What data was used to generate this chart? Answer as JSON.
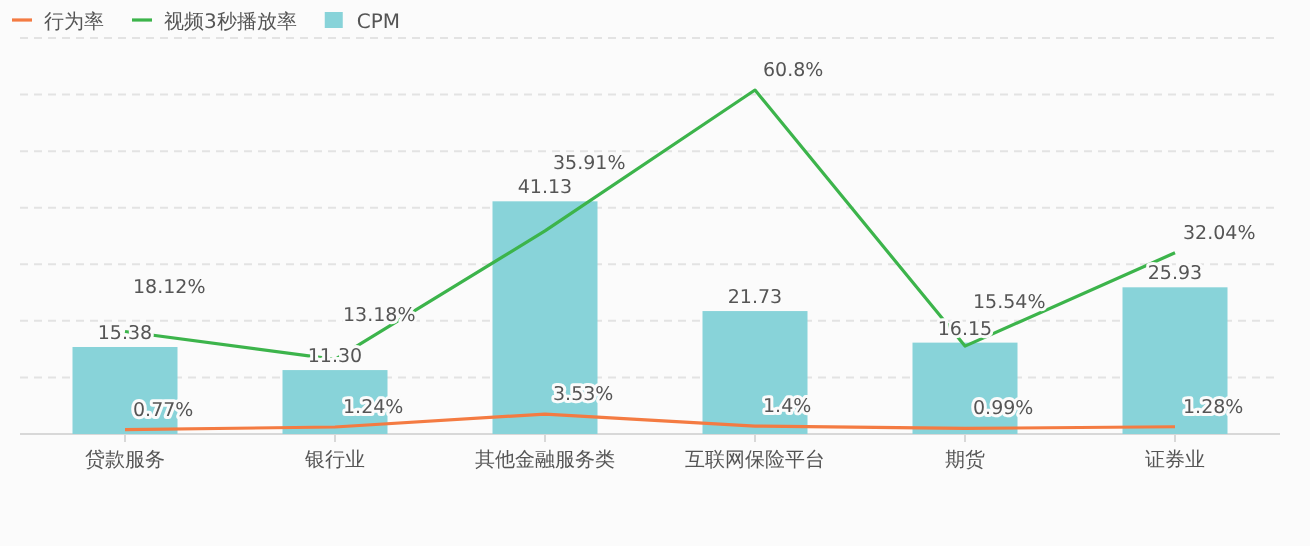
{
  "chart_data": {
    "type": "bar",
    "categories": [
      "贷款服务",
      "银行业",
      "其他金融服务类",
      "互联网保险平台",
      "期货",
      "证券业"
    ],
    "series": [
      {
        "name": "行为率",
        "type": "line",
        "color": "#f47b42",
        "values": [
          0.77,
          1.24,
          3.53,
          1.4,
          0.99,
          1.28
        ],
        "value_labels": [
          "0.77%",
          "1.24%",
          "3.53%",
          "1.4%",
          "0.99%",
          "1.28%"
        ]
      },
      {
        "name": "视频3秒播放率",
        "type": "line",
        "color": "#3cb44b",
        "values": [
          18.12,
          13.18,
          35.91,
          60.8,
          15.54,
          32.04
        ],
        "value_labels": [
          "18.12%",
          "13.18%",
          "35.91%",
          "60.8%",
          "15.54%",
          "32.04%"
        ]
      },
      {
        "name": "CPM",
        "color": "#88d3d9",
        "values": [
          15.38,
          11.3,
          41.13,
          21.73,
          16.15,
          25.93
        ],
        "value_labels": [
          "15.38",
          "11.30",
          "41.13",
          "21.73",
          "16.15",
          "25.93"
        ]
      }
    ],
    "ylim": [
      0,
      70
    ],
    "yticks": [
      {
        "value": 0,
        "label": null
      },
      {
        "value": 10,
        "label": null
      },
      {
        "value": 20,
        "label": null
      },
      {
        "value": 30,
        "label": null
      },
      {
        "value": 40,
        "label": null
      },
      {
        "value": 50,
        "label": null
      },
      {
        "value": 60,
        "label": null
      },
      {
        "value": 70,
        "label": null
      }
    ],
    "tick_labels": "x",
    "grid": "y",
    "legend": "top left",
    "marker": "none",
    "line_style": "solid"
  }
}
